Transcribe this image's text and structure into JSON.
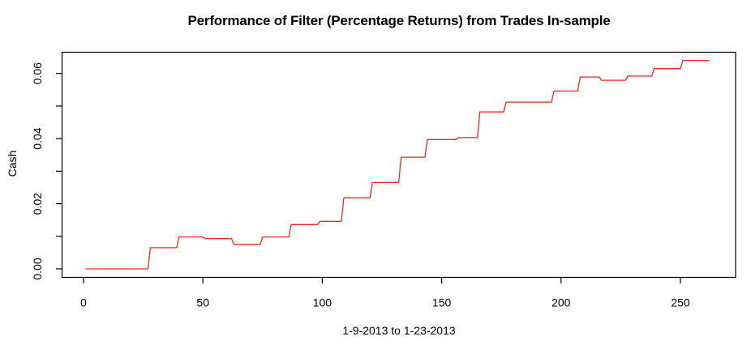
{
  "chart_data": {
    "type": "line",
    "style": "step",
    "title": "Performance of Filter (Percentage Returns) from Trades In-sample",
    "xlabel": "1-9-2013 to 1-23-2013",
    "ylabel": "Cash",
    "x_ticks": [
      0,
      50,
      100,
      150,
      200,
      250
    ],
    "x_tick_labels": [
      "0",
      "50",
      "100",
      "150",
      "200",
      "250"
    ],
    "y_ticks": [
      0,
      0.01,
      0.02,
      0.03,
      0.04,
      0.05,
      0.06
    ],
    "y_tick_labels": [
      "0.00",
      "",
      "0.02",
      "",
      "0.04",
      "",
      "0.06"
    ],
    "xlim": [
      -9.4,
      273.5
    ],
    "ylim": [
      -0.0026,
      0.0664
    ],
    "grid": false,
    "legend": null,
    "frame": true,
    "axis_color": "#000000",
    "background": "#ffffff",
    "series": [
      {
        "name": "Cash",
        "color": "#ff2222",
        "x_end": 262,
        "levels": [
          [
            1,
            0.0
          ],
          [
            27,
            0.0065
          ],
          [
            39,
            0.0098
          ],
          [
            50,
            0.0093
          ],
          [
            62,
            0.0075
          ],
          [
            74,
            0.0098
          ],
          [
            86,
            0.0136
          ],
          [
            98,
            0.0146
          ],
          [
            108,
            0.0218
          ],
          [
            120,
            0.0265
          ],
          [
            132,
            0.0343
          ],
          [
            143,
            0.0397
          ],
          [
            156,
            0.0403
          ],
          [
            165,
            0.0482
          ],
          [
            176,
            0.0512
          ],
          [
            196,
            0.0546
          ],
          [
            207,
            0.0589
          ],
          [
            216,
            0.0579
          ],
          [
            227,
            0.0592
          ],
          [
            238,
            0.0615
          ],
          [
            250,
            0.064
          ]
        ]
      }
    ]
  }
}
